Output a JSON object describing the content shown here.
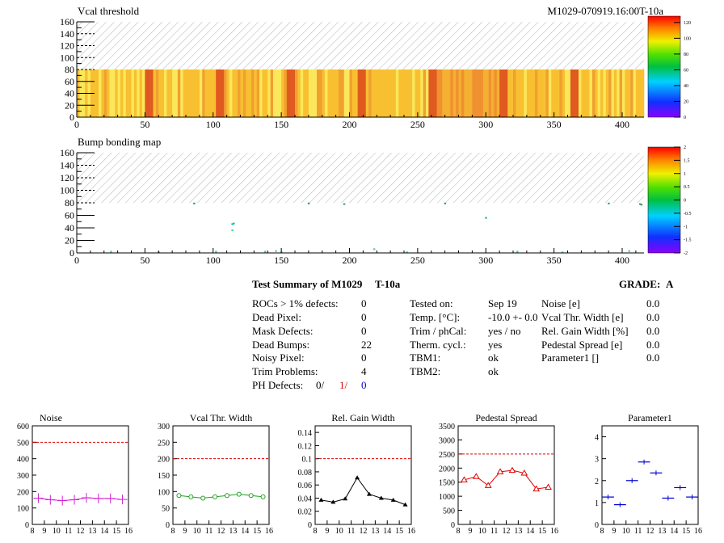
{
  "maps": [
    {
      "title": "Vcal threshold",
      "label": "M1029-070919.16:00T-10a",
      "yticks": [
        "0",
        "20",
        "40",
        "60",
        "80",
        "100",
        "120",
        "140",
        "160"
      ],
      "xticks": [
        "0",
        "50",
        "100",
        "150",
        "200",
        "250",
        "300",
        "350",
        "400"
      ],
      "zticks": [
        "0",
        "20",
        "40",
        "60",
        "80",
        "100",
        "120"
      ],
      "xlim": [
        0,
        416
      ],
      "ylim": [
        0,
        160
      ],
      "zlim": [
        0,
        128
      ],
      "filled_rows": [
        0,
        80
      ],
      "roc_boundaries": [
        52,
        104,
        156,
        208,
        260,
        312,
        364
      ],
      "colors": {
        "warm": "#f8c030",
        "hot": "#e05a20",
        "light": "#fbe75a"
      }
    },
    {
      "title": "Bump bonding map",
      "yticks": [
        "0",
        "20",
        "40",
        "60",
        "80",
        "100",
        "120",
        "140",
        "160"
      ],
      "xticks": [
        "0",
        "50",
        "100",
        "150",
        "200",
        "250",
        "300",
        "350",
        "400"
      ],
      "zticks": [
        "-2",
        "-1.5",
        "-1",
        "-0.5",
        "0",
        "0.5",
        "1",
        "1.5",
        "2"
      ],
      "xlim": [
        0,
        416
      ],
      "ylim": [
        0,
        160
      ],
      "zlim": [
        -2,
        2
      ],
      "dead_bumps": [
        {
          "x": 114,
          "y": 46
        },
        {
          "x": 115,
          "y": 47
        },
        {
          "x": 114,
          "y": 36
        },
        {
          "x": 102,
          "y": 2
        },
        {
          "x": 138,
          "y": 2
        },
        {
          "x": 146,
          "y": 3
        },
        {
          "x": 196,
          "y": 78
        },
        {
          "x": 218,
          "y": 6
        },
        {
          "x": 300,
          "y": 56
        },
        {
          "x": 405,
          "y": 3
        },
        {
          "x": 413,
          "y": 78
        },
        {
          "x": 414,
          "y": 77
        },
        {
          "x": 170,
          "y": 79
        },
        {
          "x": 242,
          "y": 1
        },
        {
          "x": 323,
          "y": 2
        },
        {
          "x": 60,
          "y": 1
        },
        {
          "x": 86,
          "y": 79
        },
        {
          "x": 270,
          "y": 79
        },
        {
          "x": 356,
          "y": 1
        },
        {
          "x": 25,
          "y": 2
        },
        {
          "x": 390,
          "y": 79
        },
        {
          "x": 150,
          "y": 1
        }
      ]
    }
  ],
  "summary": {
    "title": "Test Summary of M1029",
    "subtitle": "T-10a",
    "grade_label": "GRADE:",
    "grade": "A",
    "col1": [
      {
        "label": "ROCs > 1% defects:",
        "value": "0"
      },
      {
        "label": "Dead Pixel:",
        "value": "0"
      },
      {
        "label": "Mask Defects:",
        "value": "0"
      },
      {
        "label": "Dead Bumps:",
        "value": "22"
      },
      {
        "label": "Noisy Pixel:",
        "value": "0"
      },
      {
        "label": "Trim Problems:",
        "value": "4"
      }
    ],
    "ph_defects": {
      "label": "PH Defects:",
      "v1": "0/",
      "v2": "1/",
      "v3": "0"
    },
    "col2": [
      {
        "label": "Tested on:",
        "value": "Sep 19"
      },
      {
        "label": "Temp. [°C]:",
        "value": "-10.0 +- 0.0"
      },
      {
        "label": "Trim / phCal:",
        "value": "yes / no"
      },
      {
        "label": "Therm. cycl.:",
        "value": "yes"
      },
      {
        "label": "TBM1:",
        "value": "ok"
      },
      {
        "label": "TBM2:",
        "value": "ok"
      }
    ],
    "col3": [
      {
        "label": "Noise [e]",
        "value": "0.0"
      },
      {
        "label": "Vcal Thr. Width [e]",
        "value": "0.0"
      },
      {
        "label": "Rel. Gain Width [%]",
        "value": "0.0"
      },
      {
        "label": "Pedestal Spread [e]",
        "value": "0.0"
      },
      {
        "label": "Parameter1 []",
        "value": "0.0"
      }
    ]
  },
  "chart_data": [
    {
      "type": "line",
      "title": "Noise",
      "x": [
        8.5,
        9.5,
        10.5,
        11.5,
        12.5,
        13.5,
        14.5,
        15.5
      ],
      "values": [
        160,
        150,
        145,
        150,
        162,
        158,
        158,
        152
      ],
      "xlim": [
        8,
        16
      ],
      "ylim": [
        0,
        600
      ],
      "xticks": [
        "8",
        "9",
        "10",
        "11",
        "12",
        "13",
        "14",
        "15",
        "16"
      ],
      "yticks": [
        "0",
        "100",
        "200",
        "300",
        "400",
        "500",
        "600"
      ],
      "limit": 500,
      "marker": "cross",
      "color": "#d020d0"
    },
    {
      "type": "line",
      "title": "Vcal Thr. Width",
      "x": [
        8.5,
        9.5,
        10.5,
        11.5,
        12.5,
        13.5,
        14.5,
        15.5
      ],
      "values": [
        88,
        84,
        80,
        84,
        88,
        92,
        88,
        84
      ],
      "xlim": [
        8,
        16
      ],
      "ylim": [
        0,
        300
      ],
      "xticks": [
        "8",
        "9",
        "10",
        "11",
        "12",
        "13",
        "14",
        "15",
        "16"
      ],
      "yticks": [
        "0",
        "50",
        "100",
        "150",
        "200",
        "250",
        "300"
      ],
      "limit": 200,
      "marker": "circle",
      "color": "#20a020"
    },
    {
      "type": "line",
      "title": "Rel. Gain Width",
      "x": [
        8.5,
        9.5,
        10.5,
        11.5,
        12.5,
        13.5,
        14.5,
        15.5
      ],
      "values": [
        0.037,
        0.034,
        0.039,
        0.071,
        0.046,
        0.04,
        0.037,
        0.03
      ],
      "xlim": [
        8,
        16
      ],
      "ylim": [
        0,
        0.15
      ],
      "xticks": [
        "8",
        "9",
        "10",
        "11",
        "12",
        "13",
        "14",
        "15",
        "16"
      ],
      "yticks": [
        "0",
        "0.02",
        "0.04",
        "0.06",
        "0.08",
        "0.1",
        "0.12",
        "0.14"
      ],
      "ytick_values": [
        0,
        0.02,
        0.04,
        0.06,
        0.08,
        0.1,
        0.12,
        0.14
      ],
      "limit": 0.1,
      "marker": "triangle",
      "color": "#000000"
    },
    {
      "type": "line",
      "title": "Pedestal Spread",
      "x": [
        8.5,
        9.5,
        10.5,
        11.5,
        12.5,
        13.5,
        14.5,
        15.5
      ],
      "values": [
        1580,
        1700,
        1380,
        1870,
        1920,
        1820,
        1260,
        1320
      ],
      "xlim": [
        8,
        16
      ],
      "ylim": [
        0,
        3500
      ],
      "xticks": [
        "8",
        "9",
        "10",
        "11",
        "12",
        "13",
        "14",
        "15",
        "16"
      ],
      "yticks": [
        "0",
        "500",
        "1000",
        "1500",
        "2000",
        "2500",
        "3000",
        "3500"
      ],
      "limit": 2500,
      "marker": "triangle-open",
      "color": "#e00000"
    },
    {
      "type": "scatter",
      "title": "Parameter1",
      "x": [
        8.5,
        9.5,
        10.5,
        11.5,
        12.5,
        13.5,
        14.5,
        15.5
      ],
      "values": [
        1.25,
        0.9,
        2.0,
        2.85,
        2.35,
        1.2,
        1.68,
        1.25
      ],
      "xlim": [
        8,
        16
      ],
      "ylim": [
        0,
        4.5
      ],
      "xticks": [
        "8",
        "9",
        "10",
        "11",
        "12",
        "13",
        "14",
        "15",
        "16"
      ],
      "yticks": [
        "0",
        "1",
        "2",
        "3",
        "4"
      ],
      "ytick_values": [
        0,
        1,
        2,
        3,
        4
      ],
      "marker": "hbar",
      "color": "#0000d0"
    }
  ]
}
